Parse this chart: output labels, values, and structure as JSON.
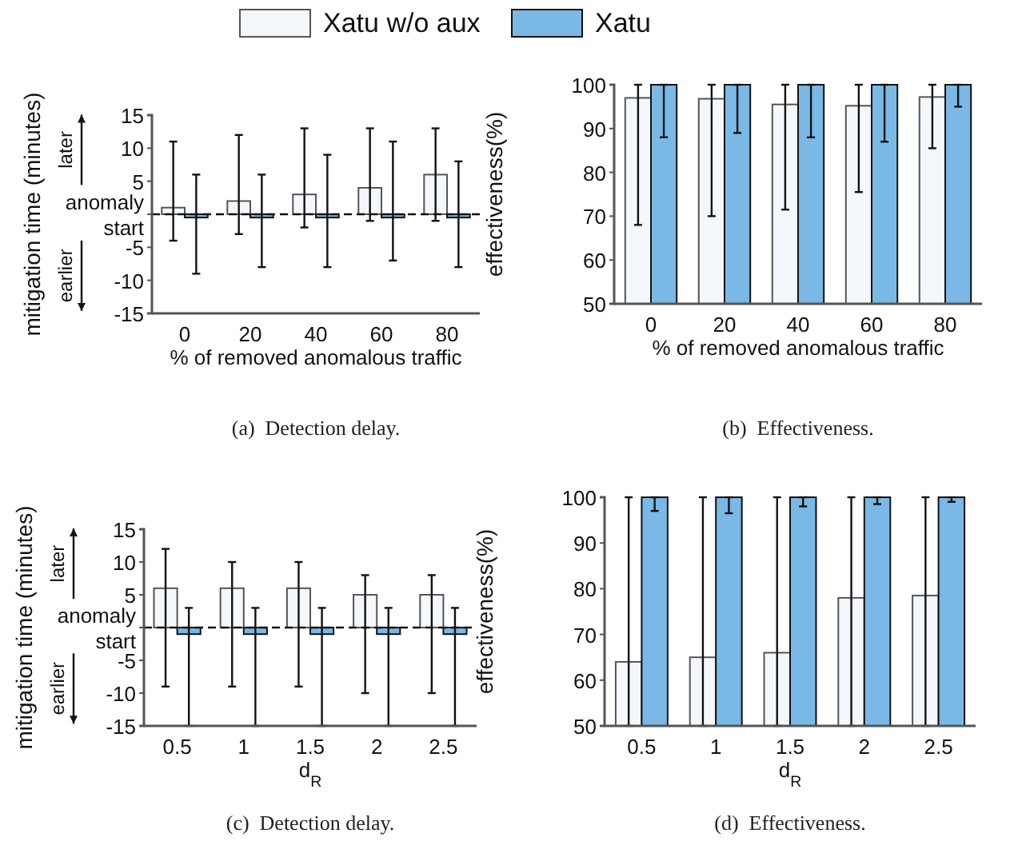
{
  "chart_data": [
    {
      "type": "bar",
      "categories": [
        "0",
        "20",
        "40",
        "60",
        "80"
      ],
      "xlabel": "% of removed anomalous traffic",
      "ylabel": "mitigation time (minutes)",
      "ylim": [
        -15,
        15
      ],
      "yticks": [
        -15,
        -10,
        -5,
        {
          "value": 0,
          "label": "anomaly start"
        },
        5,
        10,
        15
      ],
      "legend": "top",
      "grid": false,
      "series": [
        {
          "name": "Xatu w/o aux",
          "color": "#f4f8fc",
          "values": [
            1,
            2,
            3,
            4,
            6
          ],
          "errors": [
            [
              -4,
              11
            ],
            [
              -3,
              12
            ],
            [
              -2,
              13
            ],
            [
              -1,
              13
            ],
            [
              -1,
              13
            ]
          ]
        },
        {
          "name": "Xatu",
          "color": "#7ab8e5",
          "values": [
            -0.5,
            -0.5,
            -0.5,
            -0.5,
            -0.5
          ],
          "errors": [
            [
              -9,
              6
            ],
            [
              -8,
              6
            ],
            [
              -8,
              9
            ],
            [
              -7,
              11
            ],
            [
              -8,
              8
            ]
          ]
        }
      ],
      "ref_lines": [
        {
          "axis": "y",
          "value": 0,
          "label": null,
          "line_style": "dashed"
        }
      ],
      "annotations": [
        "later",
        "earlier",
        "(a)  Detection delay."
      ]
    },
    {
      "type": "bar",
      "categories": [
        "0",
        "20",
        "40",
        "60",
        "80"
      ],
      "xlabel": "% of removed anomalous traffic",
      "ylabel": "effectiveness(%)",
      "ylim": [
        50,
        100
      ],
      "yticks": [
        50,
        60,
        70,
        80,
        90,
        100
      ],
      "grid": false,
      "series": [
        {
          "color": "#f4f8fc",
          "values": [
            97,
            96.8,
            95.5,
            95.2,
            97.2
          ],
          "errors": [
            [
              68,
              100
            ],
            [
              70,
              100
            ],
            [
              71.5,
              100
            ],
            [
              75.5,
              100
            ],
            [
              85.5,
              100
            ]
          ]
        },
        {
          "color": "#7ab8e5",
          "values": [
            100,
            100,
            100,
            100,
            100
          ],
          "errors": [
            [
              88,
              100
            ],
            [
              89,
              100
            ],
            [
              88,
              100
            ],
            [
              87,
              100
            ],
            [
              95,
              100
            ]
          ]
        }
      ],
      "annotations": [
        "(b)  Effectiveness."
      ]
    },
    {
      "type": "bar",
      "categories": [
        "0.5",
        "1",
        "1.5",
        "2",
        "2.5"
      ],
      "xlabel": "d$_{R}$",
      "ylabel": "mitigation time (minutes)",
      "ylim": [
        -15,
        15
      ],
      "yticks": [
        -15,
        -10,
        -5,
        {
          "value": 0,
          "label": "anomaly start"
        },
        5,
        10,
        15
      ],
      "grid": false,
      "series": [
        {
          "color": "#f4f8fc",
          "values": [
            6,
            6,
            6,
            5,
            5
          ],
          "errors": [
            [
              -9,
              12
            ],
            [
              -9,
              10
            ],
            [
              -9,
              10
            ],
            [
              -10,
              8
            ],
            [
              -10,
              8
            ]
          ]
        },
        {
          "color": "#7ab8e5",
          "values": [
            -1,
            -1,
            -1,
            -1,
            -1
          ],
          "errors": [
            [
              -15,
              3
            ],
            [
              -15,
              3
            ],
            [
              -15,
              3
            ],
            [
              -15,
              3
            ],
            [
              -15,
              3
            ]
          ]
        }
      ],
      "ref_lines": [
        {
          "axis": "y",
          "value": 0,
          "label": null,
          "line_style": "dashed"
        }
      ],
      "annotations": [
        "later",
        "earlier",
        "(c)  Detection delay."
      ]
    },
    {
      "type": "bar",
      "categories": [
        "0.5",
        "1",
        "1.5",
        "2",
        "2.5"
      ],
      "xlabel": "d$_{R}$",
      "ylabel": "effectiveness(%)",
      "ylim": [
        50,
        100
      ],
      "yticks": [
        50,
        60,
        70,
        80,
        90,
        100
      ],
      "grid": false,
      "series": [
        {
          "color": "#f4f8fc",
          "values": [
            64,
            65,
            66,
            78,
            78.5
          ],
          "errors": [
            [
              50,
              100
            ],
            [
              50,
              100
            ],
            [
              50,
              100
            ],
            [
              50,
              100
            ],
            [
              50,
              100
            ]
          ]
        },
        {
          "color": "#7ab8e5",
          "values": [
            100,
            100,
            100,
            100,
            100
          ],
          "errors": [
            [
              97,
              100
            ],
            [
              96.5,
              100
            ],
            [
              98,
              100
            ],
            [
              98.5,
              100
            ],
            [
              99,
              100
            ]
          ]
        }
      ],
      "annotations": [
        "(d)  Effectiveness."
      ]
    }
  ]
}
